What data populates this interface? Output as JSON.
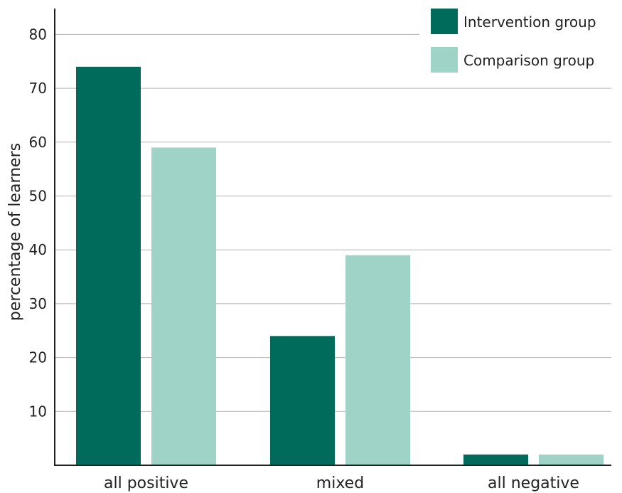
{
  "chart_data": {
    "type": "bar",
    "title": "",
    "xlabel": "",
    "ylabel": "percentage of learners",
    "categories": [
      "all positive",
      "mixed",
      "all negative"
    ],
    "series": [
      {
        "name": "Intervention group",
        "color": "#006b5b",
        "values": [
          74,
          24,
          2
        ]
      },
      {
        "name": "Comparison group",
        "color": "#9fd3c8",
        "values": [
          59,
          39,
          2
        ]
      }
    ],
    "ylim": [
      0,
      85
    ],
    "yticks": [
      10,
      20,
      30,
      40,
      50,
      60,
      70,
      80
    ],
    "grid": true,
    "legend_position": "top-right"
  }
}
